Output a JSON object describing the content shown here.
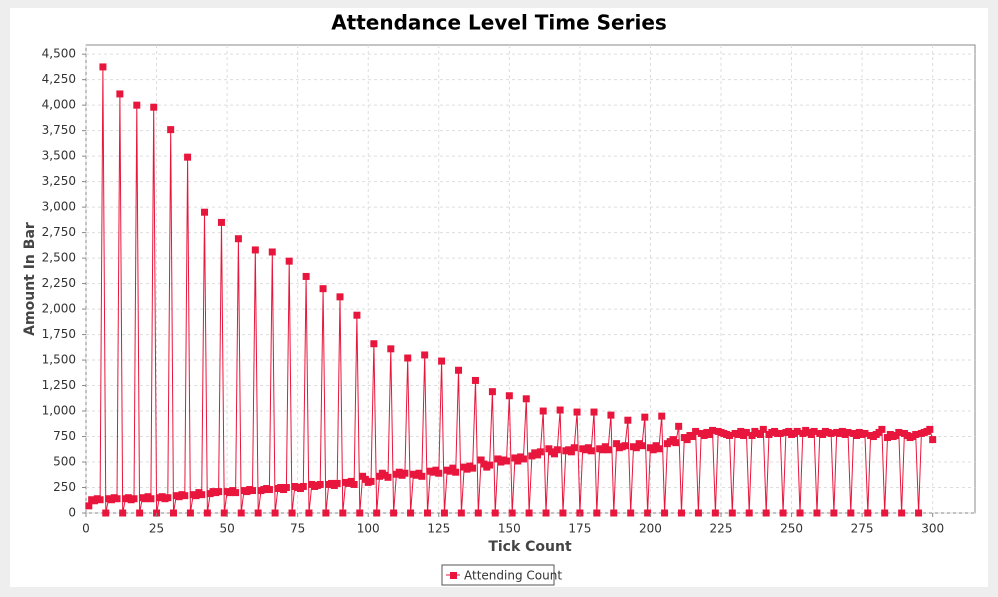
{
  "chart_data": {
    "type": "line",
    "title": "Attendance Level Time Series",
    "x_label": "Tick Count",
    "y_label": "Amount In Bar",
    "x": [
      1,
      2,
      3,
      4,
      5,
      6,
      7,
      8,
      9,
      10,
      11,
      12,
      13,
      14,
      15,
      16,
      17,
      18,
      19,
      20,
      21,
      22,
      23,
      24,
      25,
      26,
      27,
      28,
      29,
      30,
      31,
      32,
      33,
      34,
      35,
      36,
      37,
      38,
      39,
      40,
      41,
      42,
      43,
      44,
      45,
      46,
      47,
      48,
      49,
      50,
      51,
      52,
      53,
      54,
      55,
      56,
      57,
      58,
      59,
      60,
      61,
      62,
      63,
      64,
      65,
      66,
      67,
      68,
      69,
      70,
      71,
      72,
      73,
      74,
      75,
      76,
      77,
      78,
      79,
      80,
      81,
      82,
      83,
      84,
      85,
      86,
      87,
      88,
      89,
      90,
      91,
      92,
      93,
      94,
      95,
      96,
      97,
      98,
      99,
      100,
      101,
      102,
      103,
      104,
      105,
      106,
      107,
      108,
      109,
      110,
      111,
      112,
      113,
      114,
      115,
      116,
      117,
      118,
      119,
      120,
      121,
      122,
      123,
      124,
      125,
      126,
      127,
      128,
      129,
      130,
      131,
      132,
      133,
      134,
      135,
      136,
      137,
      138,
      139,
      140,
      141,
      142,
      143,
      144,
      145,
      146,
      147,
      148,
      149,
      150,
      151,
      152,
      153,
      154,
      155,
      156,
      157,
      158,
      159,
      160,
      161,
      162,
      163,
      164,
      165,
      166,
      167,
      168,
      169,
      170,
      171,
      172,
      173,
      174,
      175,
      176,
      177,
      178,
      179,
      180,
      181,
      182,
      183,
      184,
      185,
      186,
      187,
      188,
      189,
      190,
      191,
      192,
      193,
      194,
      195,
      196,
      197,
      198,
      199,
      200,
      201,
      202,
      203,
      204,
      205,
      206,
      207,
      208,
      209,
      210,
      211,
      212,
      213,
      214,
      215,
      216,
      217,
      218,
      219,
      220,
      221,
      222,
      223,
      224,
      225,
      226,
      227,
      228,
      229,
      230,
      231,
      232,
      233,
      234,
      235,
      236,
      237,
      238,
      239,
      240,
      241,
      242,
      243,
      244,
      245,
      246,
      247,
      248,
      249,
      250,
      251,
      252,
      253,
      254,
      255,
      256,
      257,
      258,
      259,
      260,
      261,
      262,
      263,
      264,
      265,
      266,
      267,
      268,
      269,
      270,
      271,
      272,
      273,
      274,
      275,
      276,
      277,
      278,
      279,
      280,
      281,
      282,
      283,
      284,
      285,
      286,
      287,
      288,
      289,
      290,
      291,
      292,
      293,
      294,
      295,
      296,
      297,
      298,
      299,
      300
    ],
    "series": [
      {
        "name": "Attending Count",
        "color": "#e8163c",
        "values": [
          70,
          130,
          120,
          140,
          130,
          4375,
          0,
          140,
          130,
          150,
          140,
          4110,
          0,
          140,
          150,
          130,
          140,
          4000,
          0,
          150,
          140,
          160,
          140,
          3980,
          0,
          150,
          160,
          140,
          150,
          3760,
          0,
          170,
          160,
          180,
          170,
          3490,
          0,
          180,
          170,
          200,
          180,
          2950,
          0,
          190,
          210,
          200,
          210,
          2850,
          0,
          210,
          200,
          220,
          200,
          2690,
          0,
          220,
          210,
          230,
          220,
          2580,
          0,
          220,
          230,
          240,
          230,
          2560,
          0,
          240,
          250,
          230,
          250,
          2470,
          0,
          260,
          250,
          240,
          260,
          2320,
          0,
          280,
          260,
          270,
          280,
          2200,
          0,
          280,
          290,
          270,
          290,
          2120,
          0,
          300,
          290,
          310,
          280,
          1940,
          0,
          360,
          330,
          300,
          310,
          1660,
          0,
          360,
          390,
          370,
          350,
          1610,
          0,
          380,
          400,
          370,
          390,
          1520,
          0,
          380,
          370,
          390,
          360,
          1550,
          0,
          410,
          400,
          420,
          390,
          1490,
          0,
          420,
          410,
          440,
          400,
          1400,
          0,
          450,
          430,
          460,
          440,
          1300,
          0,
          520,
          480,
          450,
          470,
          1190,
          0,
          530,
          500,
          520,
          510,
          1150,
          0,
          540,
          510,
          550,
          530,
          1120,
          0,
          560,
          590,
          570,
          600,
          1000,
          0,
          630,
          600,
          580,
          620,
          1010,
          0,
          610,
          620,
          600,
          640,
          990,
          0,
          630,
          620,
          640,
          610,
          990,
          0,
          630,
          620,
          650,
          620,
          960,
          0,
          680,
          640,
          650,
          660,
          910,
          0,
          650,
          640,
          680,
          660,
          940,
          0,
          640,
          620,
          660,
          630,
          950,
          0,
          680,
          700,
          720,
          690,
          850,
          0,
          740,
          720,
          760,
          750,
          800,
          0,
          780,
          760,
          790,
          770,
          810,
          0,
          800,
          790,
          780,
          770,
          760,
          0,
          780,
          770,
          800,
          760,
          790,
          0,
          760,
          800,
          780,
          770,
          820,
          0,
          770,
          790,
          800,
          780,
          780,
          0,
          790,
          800,
          770,
          780,
          800,
          0,
          780,
          810,
          790,
          770,
          800,
          0,
          780,
          770,
          800,
          790,
          780,
          0,
          790,
          780,
          800,
          770,
          790,
          0,
          780,
          760,
          790,
          770,
          780,
          0,
          760,
          750,
          770,
          790,
          820,
          0,
          740,
          770,
          750,
          760,
          790,
          0,
          780,
          760,
          740,
          750,
          770,
          0,
          780,
          790,
          800,
          820,
          720
        ]
      }
    ],
    "xlim": [
      0,
      315
    ],
    "ylim": [
      0,
      4590
    ],
    "xticks": [
      0,
      25,
      50,
      75,
      100,
      125,
      150,
      175,
      200,
      225,
      250,
      275,
      300
    ],
    "yticks": [
      0,
      250,
      500,
      750,
      {
        "value": 1000,
        "label": "1,000"
      },
      {
        "value": 1250,
        "label": "1,250"
      },
      {
        "value": 1500,
        "label": "1,500"
      },
      {
        "value": 1750,
        "label": "1,750"
      },
      {
        "value": 2000,
        "label": "2,000"
      },
      {
        "value": 2250,
        "label": "2,250"
      },
      {
        "value": 2500,
        "label": "2,500"
      },
      {
        "value": 2750,
        "label": "2,750"
      },
      {
        "value": 3000,
        "label": "3,000"
      },
      {
        "value": 3250,
        "label": "3,250"
      },
      {
        "value": 3500,
        "label": "3,500"
      },
      {
        "value": 3750,
        "label": "3,750"
      },
      {
        "value": 4000,
        "label": "4,000"
      },
      {
        "value": 4250,
        "label": "4,250"
      },
      {
        "value": 4500,
        "label": "4,500"
      }
    ],
    "grid": true,
    "legend": "bottom"
  }
}
